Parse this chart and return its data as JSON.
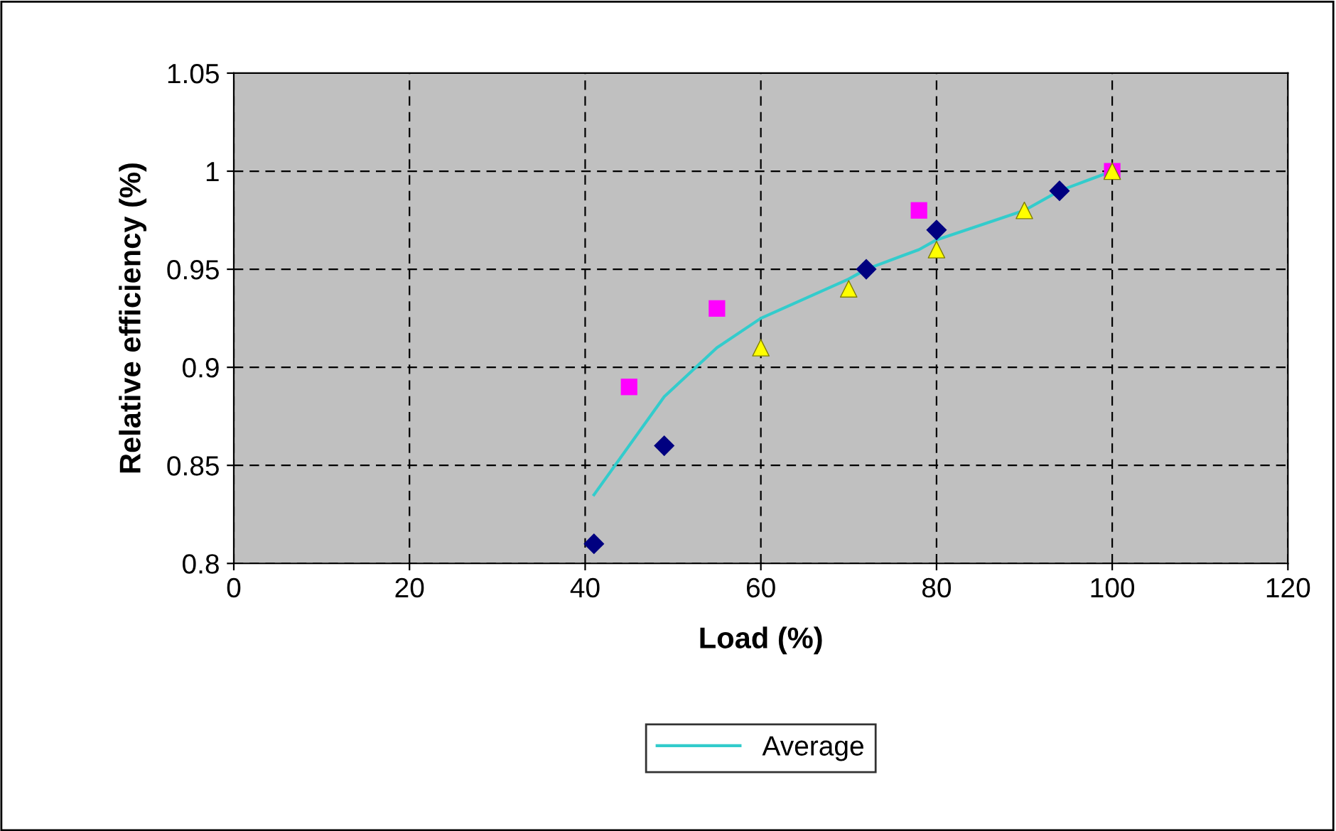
{
  "chart_data": {
    "type": "scatter",
    "xlabel": "Load (%)",
    "ylabel": "Relative efficiency (%)",
    "xlim": [
      0,
      120
    ],
    "xticks": [
      0,
      20,
      40,
      60,
      80,
      100,
      120
    ],
    "ylim": [
      0.8,
      1.05
    ],
    "yticks": [
      0.8,
      0.85,
      0.9,
      0.95,
      1,
      1.05
    ],
    "grid": true,
    "legend": "bottom",
    "series": [
      {
        "marker": "diamond",
        "color": "#000080",
        "x": [
          41,
          49,
          72,
          80,
          94
        ],
        "values": [
          0.81,
          0.86,
          0.95,
          0.97,
          0.99
        ]
      },
      {
        "marker": "square",
        "color": "#ff00ff",
        "x": [
          45,
          55,
          78,
          100
        ],
        "values": [
          0.89,
          0.93,
          0.98,
          1.0
        ]
      },
      {
        "marker": "triangle",
        "color": "#ffff00",
        "x": [
          60,
          70,
          80,
          90,
          100
        ],
        "values": [
          0.91,
          0.94,
          0.96,
          0.98,
          1.0
        ]
      },
      {
        "type": "line",
        "name": "Average",
        "color": "#33cccc",
        "line_style": "solid",
        "marker": "none",
        "x": [
          41,
          49,
          55,
          60,
          70,
          72,
          78,
          80,
          90,
          94,
          100
        ],
        "values": [
          0.835,
          0.885,
          0.91,
          0.925,
          0.945,
          0.95,
          0.96,
          0.965,
          0.98,
          0.99,
          1.0
        ]
      }
    ]
  }
}
